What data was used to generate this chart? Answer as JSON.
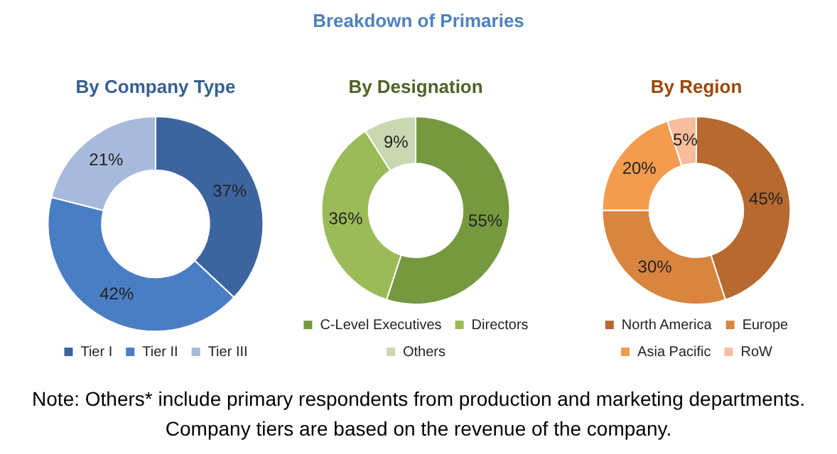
{
  "chart_data": [
    {
      "type": "other",
      "title": "Breakdown of Primaries",
      "annotations": [
        "Note: Others* include primary respondents from production and marketing departments.",
        "Company tiers are based on the revenue of the company."
      ]
    },
    {
      "type": "donut",
      "title": "By Company Type",
      "categories": [
        "Tier I",
        "Tier II",
        "Tier III"
      ],
      "values": [
        37,
        42,
        21
      ],
      "colors": [
        "#3c65a0",
        "#4a7ec4",
        "#a8badc"
      ],
      "value_labels": [
        "37%",
        "42%",
        "21%"
      ],
      "legend": "bottom"
    },
    {
      "type": "donut",
      "title": "By Designation",
      "categories": [
        "C-Level Executives",
        "Directors",
        "Others"
      ],
      "values": [
        55,
        36,
        9
      ],
      "colors": [
        "#76983f",
        "#9bbb59",
        "#c9d8b1"
      ],
      "value_labels": [
        "55%",
        "36%",
        "9%"
      ],
      "legend": "bottom"
    },
    {
      "type": "donut",
      "title": "By Region",
      "categories": [
        "North America",
        "Europe",
        "Asia Pacific",
        "RoW"
      ],
      "values": [
        45,
        30,
        20,
        5
      ],
      "colors": [
        "#b7692f",
        "#d9843f",
        "#f39c4f",
        "#f7bd9c"
      ],
      "value_labels": [
        "45%",
        "30%",
        "20%",
        "5%"
      ],
      "legend": "bottom"
    }
  ]
}
